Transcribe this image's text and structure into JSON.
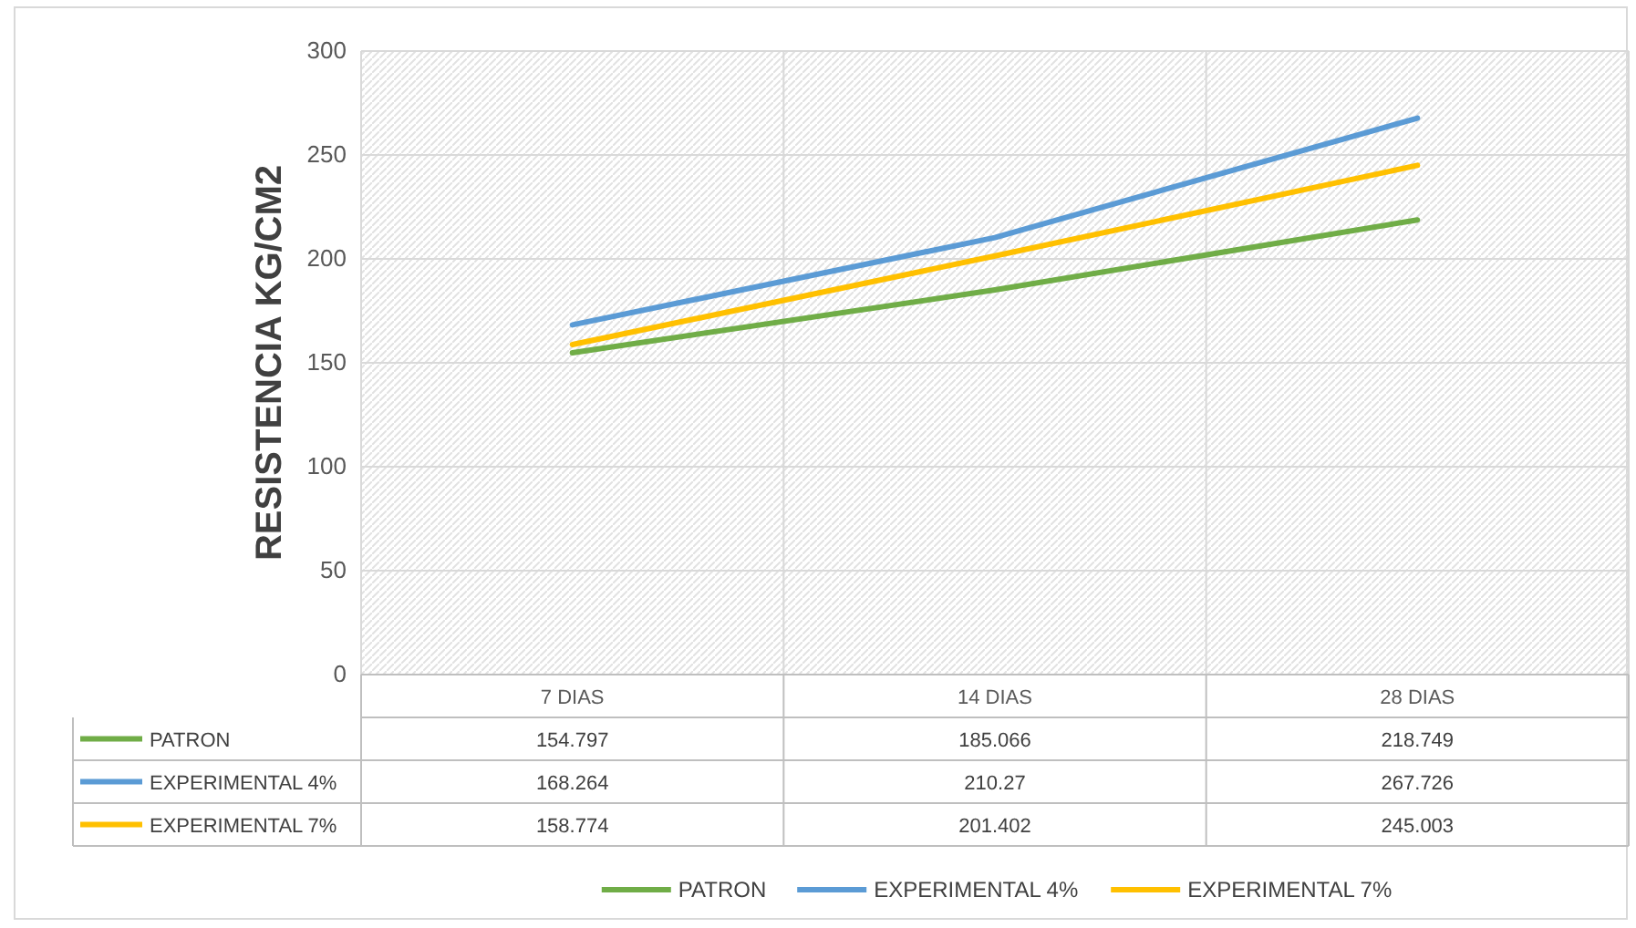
{
  "chart_data": {
    "type": "line",
    "ylabel": "RESISTENCIA KG/CM2",
    "categories": [
      "7 DIAS",
      "14 DIAS",
      "28 DIAS"
    ],
    "series": [
      {
        "name": "PATRON",
        "color": "#70ad47",
        "values": [
          154.797,
          185.066,
          218.749
        ]
      },
      {
        "name": "EXPERIMENTAL 4%",
        "color": "#5b9bd5",
        "values": [
          168.264,
          210.27,
          267.726
        ]
      },
      {
        "name": "EXPERIMENTAL 7%",
        "color": "#ffc000",
        "values": [
          158.774,
          201.402,
          245.003
        ]
      }
    ],
    "ylim": [
      0,
      300
    ],
    "yticks": [
      0,
      50,
      100,
      150,
      200,
      250,
      300
    ],
    "grid": true,
    "legend": "bottom",
    "data_labels": true,
    "line_style": "solid",
    "marker": "none"
  }
}
